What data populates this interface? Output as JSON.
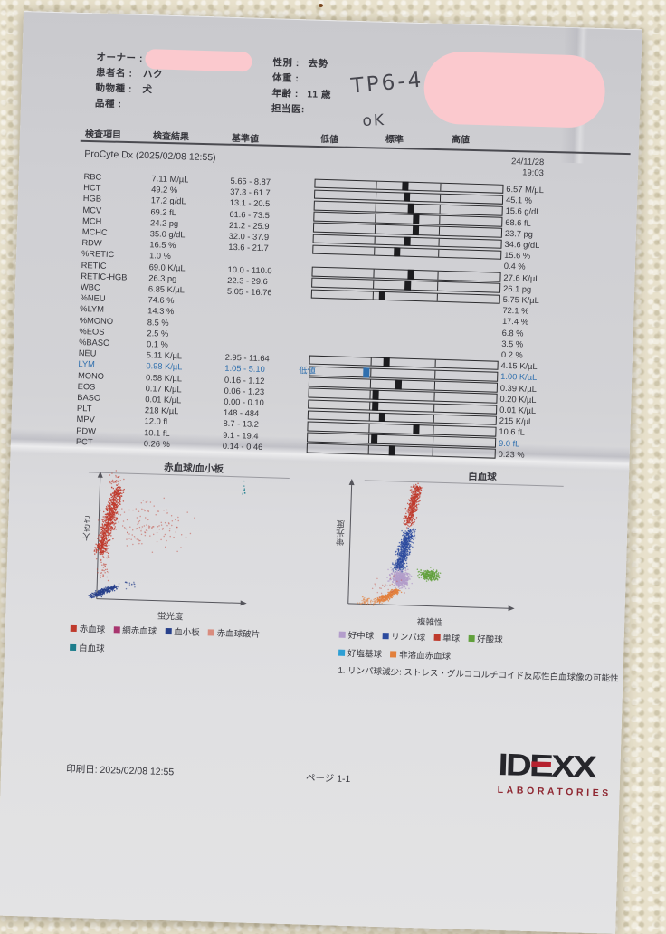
{
  "header": {
    "owner_label": "オーナー :",
    "patient_label": "患者名 :",
    "patient_value": "ハク",
    "species_label": "動物種 :",
    "species_value": "犬",
    "breed_label": "品種 :",
    "sex_label": "性別 :",
    "sex_value": "去勢",
    "weight_label": "体重 :",
    "age_label": "年齢 :",
    "age_value": "11 歳",
    "vet_label": "担当医:",
    "handwritten_code": "TP6-4",
    "handwritten_ok": "oK"
  },
  "table": {
    "headers": [
      "検査項目",
      "検査結果",
      "基準値",
      "低値",
      "標準",
      "高値"
    ],
    "section_title": "ProCyte Dx (2025/02/08 12:55)",
    "prev_date": "24/11/28",
    "prev_time": "19:03",
    "low_flag_color": "#2f6fae",
    "marker_color": "#1c1c1f",
    "rows": [
      {
        "name": "RBC",
        "result": "7.11 M/µL",
        "range": "5.65 - 8.87",
        "flag": "",
        "marker": 0.474,
        "prev": "6.57 M/µL",
        "low": false,
        "prev_low": false
      },
      {
        "name": "HCT",
        "result": "49.2 %",
        "range": "37.3 - 61.7",
        "flag": "",
        "marker": 0.486,
        "prev": "45.1 %",
        "low": false,
        "prev_low": false
      },
      {
        "name": "HGB",
        "result": "17.2 g/dL",
        "range": "13.1 - 20.5",
        "flag": "",
        "marker": 0.508,
        "prev": "15.6 g/dL",
        "low": false,
        "prev_low": false
      },
      {
        "name": "MCV",
        "result": "69.2 fL",
        "range": "61.6 - 73.5",
        "flag": "",
        "marker": 0.538,
        "prev": "68.6 fL",
        "low": false,
        "prev_low": false
      },
      {
        "name": "MCH",
        "result": "24.2 pg",
        "range": "21.2 - 25.9",
        "flag": "",
        "marker": 0.537,
        "prev": "23.7 pg",
        "low": false,
        "prev_low": false
      },
      {
        "name": "MCHC",
        "result": "35.0 g/dL",
        "range": "32.0 - 37.9",
        "flag": "",
        "marker": 0.493,
        "prev": "34.6 g/dL",
        "low": false,
        "prev_low": false
      },
      {
        "name": "RDW",
        "result": "16.5 %",
        "range": "13.6 - 21.7",
        "flag": "",
        "marker": 0.441,
        "prev": "15.6 %",
        "low": false,
        "prev_low": false
      },
      {
        "name": "%RETIC",
        "result": "1.0 %",
        "range": "",
        "flag": "",
        "marker": null,
        "prev": "0.4 %",
        "low": false,
        "prev_low": false
      },
      {
        "name": "RETIC",
        "result": "69.0 K/µL",
        "range": "10.0 - 110.0",
        "flag": "",
        "marker": 0.521,
        "prev": "27.6 K/µL",
        "low": false,
        "prev_low": false
      },
      {
        "name": "RETIC-HGB",
        "result": "26.3 pg",
        "range": "22.3 - 29.6",
        "flag": "",
        "marker": 0.506,
        "prev": "26.1 pg",
        "low": false,
        "prev_low": false
      },
      {
        "name": "WBC",
        "result": "6.85 K/µL",
        "range": "5.05 - 16.76",
        "flag": "",
        "marker": 0.372,
        "prev": "5.75 K/µL",
        "low": false,
        "prev_low": false
      },
      {
        "name": "%NEU",
        "result": "74.6 %",
        "range": "",
        "flag": "",
        "marker": null,
        "prev": "72.1 %",
        "low": false,
        "prev_low": false
      },
      {
        "name": "%LYM",
        "result": "14.3 %",
        "range": "",
        "flag": "",
        "marker": null,
        "prev": "17.4 %",
        "low": false,
        "prev_low": false
      },
      {
        "name": "%MONO",
        "result": "8.5 %",
        "range": "",
        "flag": "",
        "marker": null,
        "prev": "6.8 %",
        "low": false,
        "prev_low": false
      },
      {
        "name": "%EOS",
        "result": "2.5 %",
        "range": "",
        "flag": "",
        "marker": null,
        "prev": "3.5 %",
        "low": false,
        "prev_low": false
      },
      {
        "name": "%BASO",
        "result": "0.1 %",
        "range": "",
        "flag": "",
        "marker": null,
        "prev": "0.2 %",
        "low": false,
        "prev_low": false
      },
      {
        "name": "NEU",
        "result": "5.11 K/µL",
        "range": "2.95 - 11.64",
        "flag": "",
        "marker": 0.404,
        "prev": "4.15 K/µL",
        "low": false,
        "prev_low": false
      },
      {
        "name": "LYM",
        "result": "0.98 K/µL",
        "range": "1.05 - 5.10",
        "flag": "低値",
        "marker": 0.3,
        "prev": "1.00 K/µL",
        "low": true,
        "prev_low": true
      },
      {
        "name": "MONO",
        "result": "0.58 K/µL",
        "range": "0.16 - 1.12",
        "flag": "",
        "marker": 0.469,
        "prev": "0.39 K/µL",
        "low": false,
        "prev_low": false
      },
      {
        "name": "EOS",
        "result": "0.17 K/µL",
        "range": "0.06 - 1.23",
        "flag": "",
        "marker": 0.351,
        "prev": "0.20 K/µL",
        "low": false,
        "prev_low": false
      },
      {
        "name": "BASO",
        "result": "0.01 K/µL",
        "range": "0.00 - 0.10",
        "flag": "",
        "marker": 0.353,
        "prev": "0.01 K/µL",
        "low": false,
        "prev_low": false
      },
      {
        "name": "PLT",
        "result": "218 K/µL",
        "range": "148 - 484",
        "flag": "",
        "marker": 0.39,
        "prev": "215 K/µL",
        "low": false,
        "prev_low": false
      },
      {
        "name": "MPV",
        "result": "12.0 fL",
        "range": "8.7 - 13.2",
        "flag": "",
        "marker": 0.57,
        "prev": "10.6 fL",
        "low": false,
        "prev_low": false
      },
      {
        "name": "PDW",
        "result": "10.1 fL",
        "range": "9.1 - 19.4",
        "flag": "",
        "marker": 0.352,
        "prev": "9.0 fL",
        "low": false,
        "prev_low": true
      },
      {
        "name": "PCT",
        "result": "0.26 %",
        "range": "0.14 - 0.46",
        "flag": "",
        "marker": 0.447,
        "prev": "0.23 %",
        "low": false,
        "prev_low": false
      }
    ]
  },
  "chart_data": [
    {
      "type": "scatter",
      "title": "赤血球/血小板",
      "xlabel": "蛍光度",
      "ylabel": "大きさ",
      "legend_position": "below",
      "axes": "unitless flow-cytometry dot plot, no ticks",
      "clusters": [
        {
          "name": "赤血球 dense",
          "shape": "line",
          "x1": 0.018,
          "y1": 0.367,
          "x2": 0.122,
          "y2": 0.878,
          "sx": 0.03,
          "sy": 0.025,
          "n": 800,
          "color": "#bf3a2c",
          "opacity": 0.8
        },
        {
          "name": "赤血球 scatter tail",
          "shape": "blob",
          "cx": 0.348,
          "cy": 0.59,
          "sx": 0.183,
          "sy": 0.129,
          "n": 130,
          "color": "#bf3a2c",
          "opacity": 0.45
        },
        {
          "name": "赤血球 top",
          "shape": "blob",
          "cx": 0.104,
          "cy": 0.95,
          "sx": 0.03,
          "sy": 0.043,
          "n": 28,
          "color": "#bf3a2c",
          "opacity": 0.55
        },
        {
          "name": "赤血球 bottom sparse",
          "shape": "blob",
          "cx": 0.043,
          "cy": 0.266,
          "sx": 0.03,
          "sy": 0.086,
          "n": 40,
          "color": "#bf3a2c",
          "opacity": 0.55
        },
        {
          "name": "血小板",
          "shape": "line",
          "x1": -0.035,
          "y1": 0.022,
          "x2": 0.122,
          "y2": 0.101,
          "sx": 0.017,
          "sy": 0.014,
          "n": 230,
          "color": "#27408b",
          "opacity": 0.85
        },
        {
          "name": "血小板 sparse",
          "shape": "blob",
          "cx": 0.213,
          "cy": 0.122,
          "sx": 0.05,
          "sy": 0.03,
          "n": 15,
          "color": "#27408b",
          "opacity": 0.6
        },
        {
          "name": "白血球 edge",
          "shape": "blob",
          "cx": 0.97,
          "cy": 0.885,
          "sx": 0.008,
          "sy": 0.055,
          "n": 9,
          "color": "#1d7d8c",
          "opacity": 0.8
        }
      ]
    },
    {
      "type": "scatter",
      "title": "白血球",
      "xlabel": "複雑性",
      "ylabel": "蛍光度",
      "legend_position": "below",
      "axes": "unitless flow-cytometry dot plot, no ticks",
      "clusters": [
        {
          "name": "単球",
          "shape": "line",
          "x1": 0.352,
          "y1": 0.654,
          "x2": 0.401,
          "y2": 0.971,
          "sx": 0.022,
          "sy": 0.02,
          "n": 460,
          "color": "#bf3a2c",
          "opacity": 0.75
        },
        {
          "name": "リンパ球",
          "shape": "line",
          "x1": 0.297,
          "y1": 0.287,
          "x2": 0.363,
          "y2": 0.603,
          "sx": 0.025,
          "sy": 0.022,
          "n": 620,
          "color": "#2b4a9e",
          "opacity": 0.75
        },
        {
          "name": "好中球",
          "shape": "blob",
          "cx": 0.313,
          "cy": 0.213,
          "sx": 0.04,
          "sy": 0.046,
          "n": 500,
          "color": "#b39dcb",
          "opacity": 0.8
        },
        {
          "name": "好酸球",
          "shape": "blob",
          "cx": 0.489,
          "cy": 0.25,
          "sx": 0.04,
          "sy": 0.03,
          "n": 230,
          "color": "#61a03c",
          "opacity": 0.8
        },
        {
          "name": "非溶血赤血球",
          "shape": "line",
          "x1": 0.187,
          "y1": 0.029,
          "x2": 0.297,
          "y2": 0.118,
          "sx": 0.018,
          "sy": 0.016,
          "n": 260,
          "color": "#e2803c",
          "opacity": 0.8
        },
        {
          "name": "非溶血赤血球 sparse",
          "shape": "blob",
          "cx": 0.121,
          "cy": 0.02,
          "sx": 0.055,
          "sy": 0.022,
          "n": 55,
          "color": "#e2803c",
          "opacity": 0.55
        },
        {
          "name": "sparse mixed",
          "shape": "blob",
          "cx": 0.231,
          "cy": 0.14,
          "sx": 0.08,
          "sy": 0.06,
          "n": 25,
          "color": "#bf3a2c",
          "opacity": 0.4
        }
      ]
    }
  ],
  "legend_left": {
    "line1": [
      {
        "label": "赤血球",
        "color": "#bf3a2c"
      },
      {
        "label": "網赤血球",
        "color": "#a8356e"
      },
      {
        "label": "血小板",
        "color": "#27408b"
      },
      {
        "label": "赤血球破片",
        "color": "#d98c7e"
      }
    ],
    "line2": [
      {
        "label": "白血球",
        "color": "#1d7d8c"
      }
    ]
  },
  "legend_right": {
    "line1": [
      {
        "label": "好中球",
        "color": "#b39dcb"
      },
      {
        "label": "リンパ球",
        "color": "#2b4a9e"
      },
      {
        "label": "単球",
        "color": "#bf3a2c"
      },
      {
        "label": "好酸球",
        "color": "#61a03c"
      }
    ],
    "line2": [
      {
        "label": "好塩基球",
        "color": "#2e9fd4"
      },
      {
        "label": "非溶血赤血球",
        "color": "#e2803c"
      }
    ]
  },
  "note": "1. リンパ球減少: ストレス・グルココルチコイド反応性白血球像の可能性",
  "footer": {
    "printed": "印刷日: 2025/02/08 12:55",
    "page": "ページ 1-1",
    "logo_text": "IDEXX",
    "logo_sub": "LABORATORIES"
  }
}
